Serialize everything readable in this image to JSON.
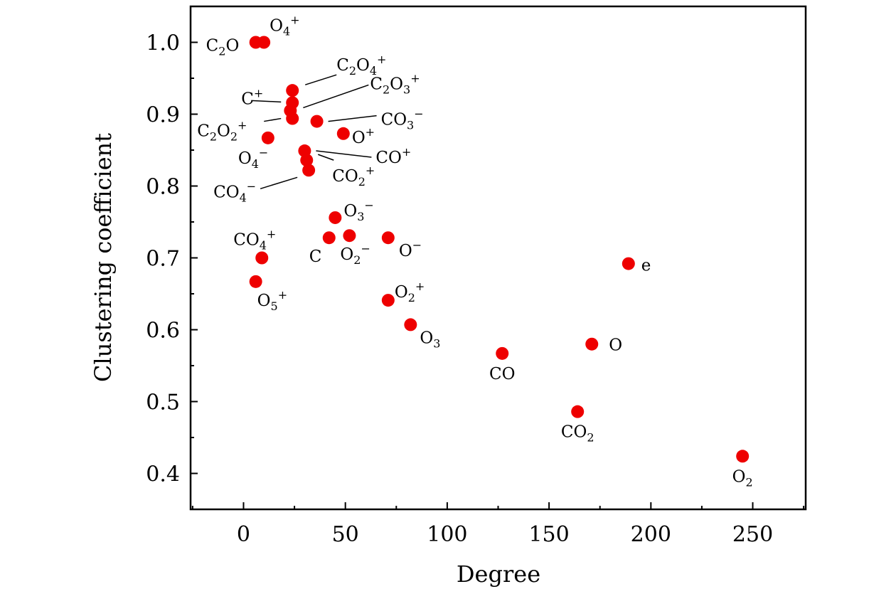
{
  "chart_data": {
    "type": "scatter",
    "xlabel": "Degree",
    "ylabel": "Clustering coefficient",
    "xlim": [
      -26,
      276
    ],
    "ylim": [
      0.35,
      1.05
    ],
    "xticks": [
      0,
      50,
      100,
      150,
      200,
      250
    ],
    "xtick_labels": [
      "0",
      "50",
      "100",
      "150",
      "200",
      "250"
    ],
    "yticks": [
      0.4,
      0.5,
      0.6,
      0.7,
      0.8,
      0.9,
      1.0
    ],
    "ytick_labels": [
      "0.4",
      "0.5",
      "0.6",
      "0.7",
      "0.8",
      "0.9",
      "1.0"
    ],
    "grid": false,
    "marker_color": "#ee0000",
    "points": [
      {
        "x": 6,
        "y": 1.0,
        "label": "C2O"
      },
      {
        "x": 10,
        "y": 1.0,
        "label": "O4+"
      },
      {
        "x": 24,
        "y": 0.933,
        "label": "C2O4+"
      },
      {
        "x": 24,
        "y": 0.916,
        "label": "C+"
      },
      {
        "x": 23,
        "y": 0.905,
        "label": "C2O3+"
      },
      {
        "x": 24,
        "y": 0.894,
        "label": "C2O2+"
      },
      {
        "x": 36,
        "y": 0.89,
        "label": "CO3−"
      },
      {
        "x": 49,
        "y": 0.873,
        "label": "O+"
      },
      {
        "x": 12,
        "y": 0.867,
        "label": "O4−"
      },
      {
        "x": 30,
        "y": 0.849,
        "label": "CO+"
      },
      {
        "x": 31,
        "y": 0.836,
        "label": "CO2+"
      },
      {
        "x": 32,
        "y": 0.822,
        "label": "CO4−"
      },
      {
        "x": 45,
        "y": 0.756,
        "label": "O3−"
      },
      {
        "x": 42,
        "y": 0.728,
        "label": "C"
      },
      {
        "x": 52,
        "y": 0.731,
        "label": "O2−"
      },
      {
        "x": 71,
        "y": 0.728,
        "label": "O−"
      },
      {
        "x": 9,
        "y": 0.7,
        "label": "CO4+"
      },
      {
        "x": 6,
        "y": 0.667,
        "label": "O5+"
      },
      {
        "x": 71,
        "y": 0.641,
        "label": "O2+"
      },
      {
        "x": 82,
        "y": 0.607,
        "label": "O3"
      },
      {
        "x": 127,
        "y": 0.567,
        "label": "CO"
      },
      {
        "x": 171,
        "y": 0.58,
        "label": "O"
      },
      {
        "x": 189,
        "y": 0.692,
        "label": "e"
      },
      {
        "x": 164,
        "y": 0.486,
        "label": "CO2"
      },
      {
        "x": 245,
        "y": 0.424,
        "label": "O2"
      }
    ]
  }
}
